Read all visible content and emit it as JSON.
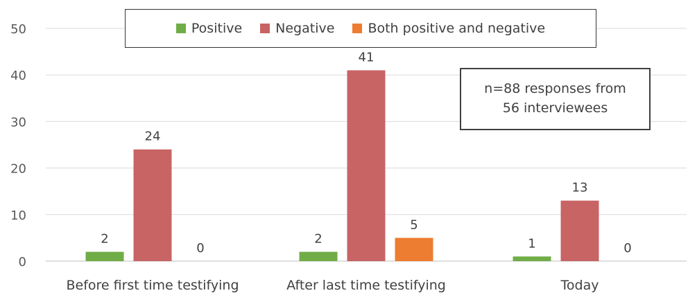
{
  "chart_data": {
    "type": "bar",
    "categories": [
      "Before first time testifying",
      "After last time testifying",
      "Today"
    ],
    "series": [
      {
        "name": "Positive",
        "values": [
          2,
          2,
          1
        ],
        "color": "#70ad47"
      },
      {
        "name": "Negative",
        "values": [
          24,
          41,
          13
        ],
        "color": "#c86464"
      },
      {
        "name": "Both positive and negative",
        "values": [
          0,
          5,
          0
        ],
        "color": "#ed7d31"
      }
    ],
    "ylim": [
      0,
      50
    ],
    "yticks": [
      0,
      10,
      20,
      30,
      40,
      50
    ],
    "grid": true,
    "legend": "top-center",
    "annotation_lines": [
      "n=88 responses from",
      "56 interviewees"
    ]
  }
}
